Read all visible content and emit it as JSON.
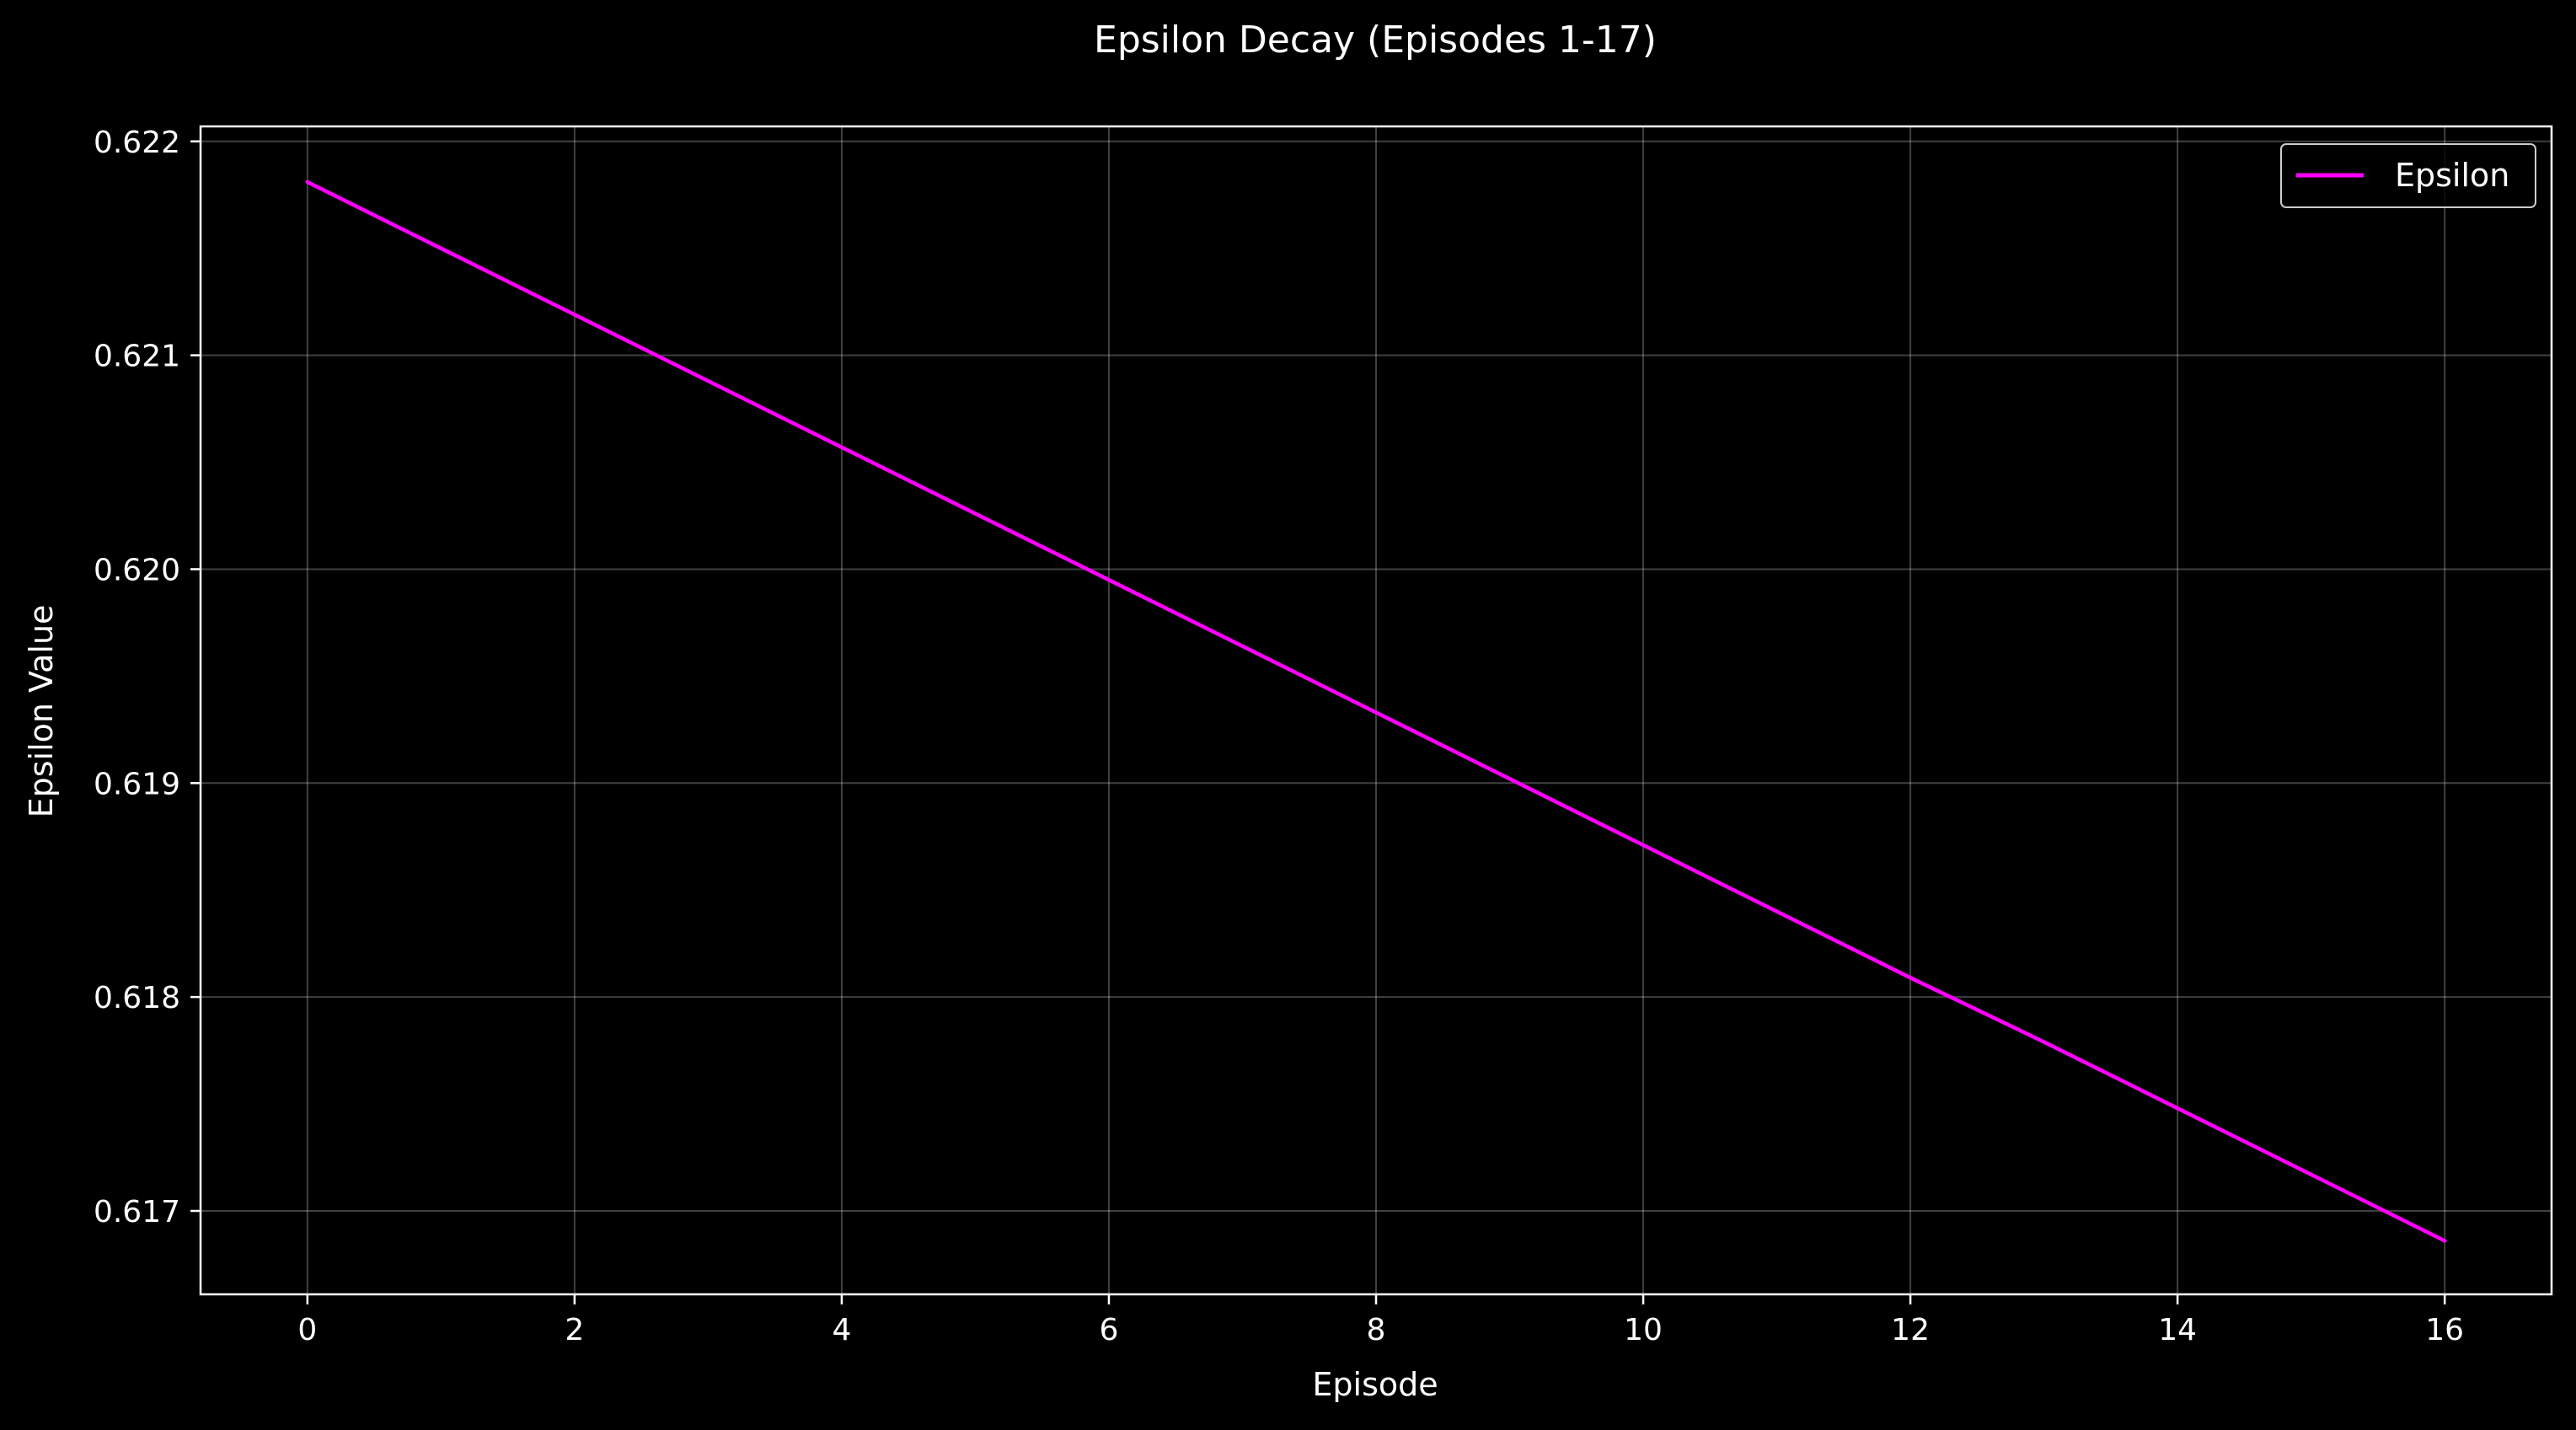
{
  "chart_data": {
    "type": "line",
    "title": "Epsilon Decay (Episodes 1-17)",
    "xlabel": "Episode",
    "ylabel": "Epsilon Value",
    "xlim": [
      -0.8,
      16.8
    ],
    "ylim": [
      0.61661,
      0.62207
    ],
    "xticks": [
      0,
      2,
      4,
      6,
      8,
      10,
      12,
      14,
      16
    ],
    "xtick_labels": [
      "0",
      "2",
      "4",
      "6",
      "8",
      "10",
      "12",
      "14",
      "16"
    ],
    "yticks": [
      0.617,
      0.618,
      0.619,
      0.62,
      0.621,
      0.622
    ],
    "ytick_labels": [
      "0.617",
      "0.618",
      "0.619",
      "0.620",
      "0.621",
      "0.622"
    ],
    "grid": true,
    "legend_position": "top-right",
    "background": "#000000",
    "series": [
      {
        "name": "Epsilon",
        "color": "#ff00ff",
        "x": [
          0,
          1,
          2,
          3,
          4,
          5,
          6,
          7,
          8,
          9,
          10,
          11,
          12,
          13,
          14,
          15,
          16
        ],
        "y": [
          0.62181,
          0.6215,
          0.62119,
          0.62088,
          0.62057,
          0.62026,
          0.61995,
          0.61964,
          0.61933,
          0.61902,
          0.61871,
          0.6184,
          0.61809,
          0.61779,
          0.61748,
          0.61717,
          0.61686
        ]
      }
    ]
  }
}
